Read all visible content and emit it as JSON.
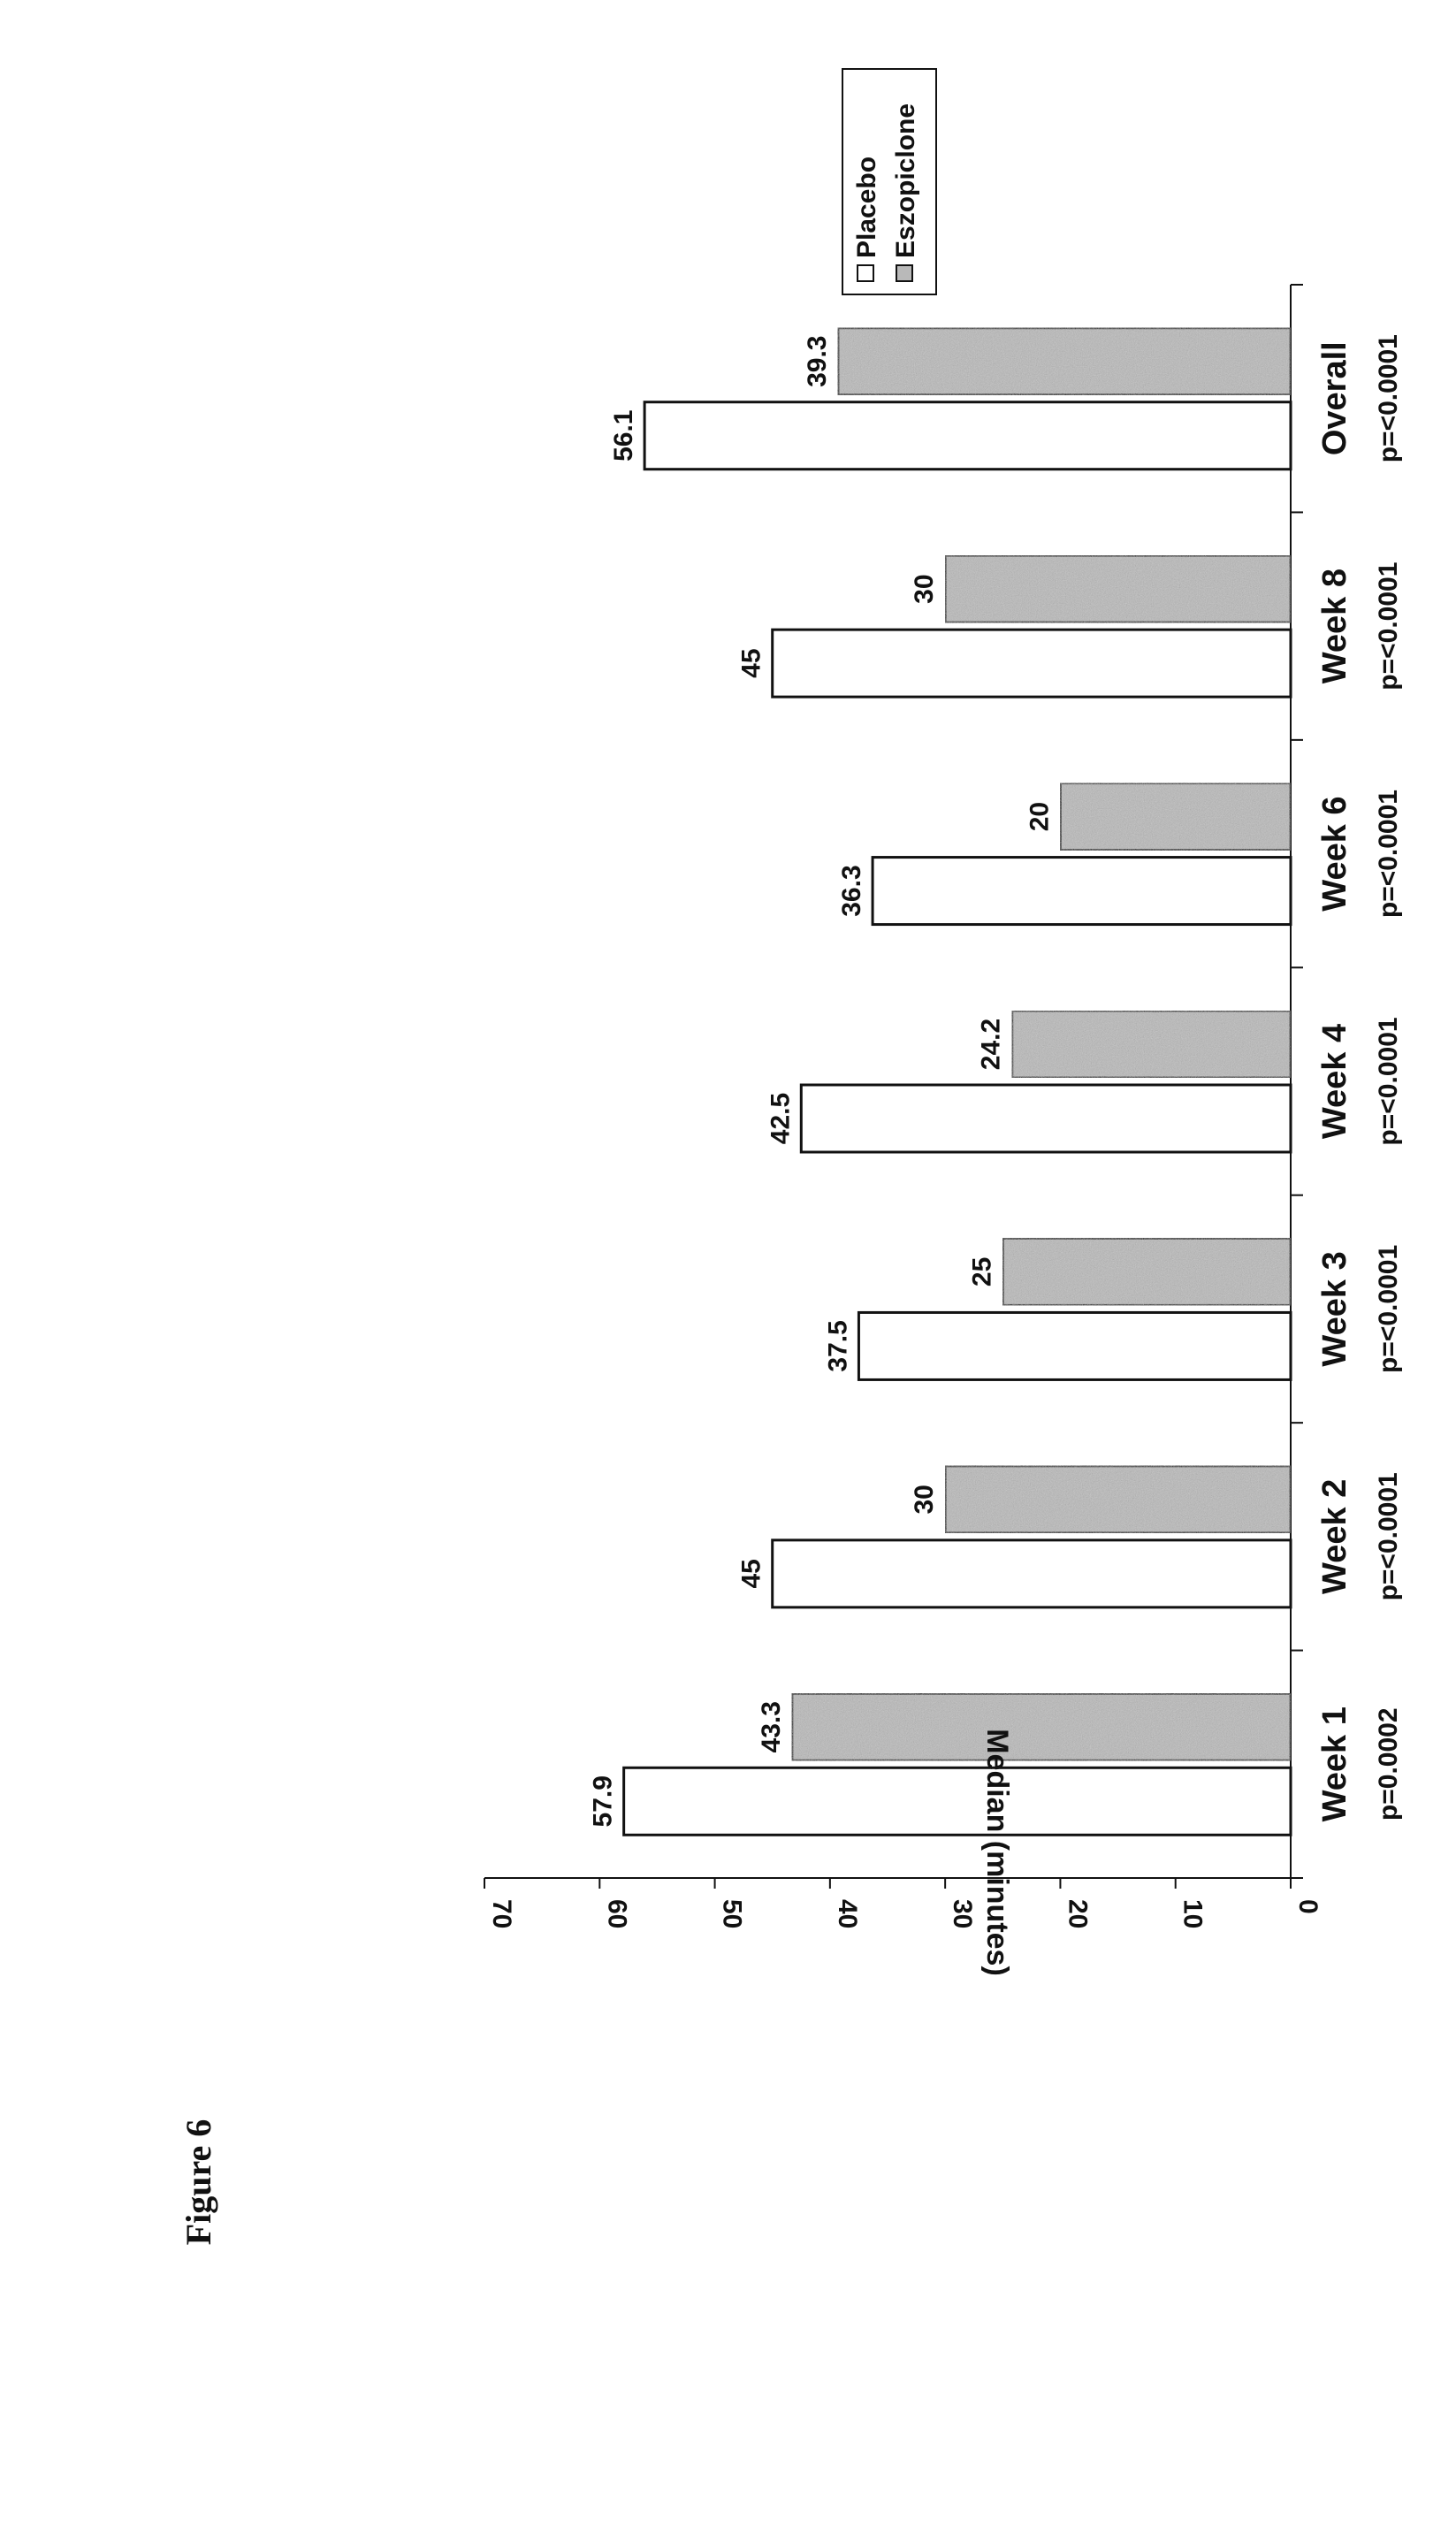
{
  "figure_label": "Figure 6",
  "colors": {
    "placebo_fill": "#ffffff",
    "eszopiclone_fill": "#b9b9b9",
    "stroke": "#111111"
  },
  "chart_data": {
    "type": "bar",
    "orientation": "rotated 90° (page is landscape-rotated)",
    "title": "",
    "xlabel": "",
    "ylabel": "Median (minutes)",
    "ylim": [
      0,
      70
    ],
    "yticks": [
      0,
      10,
      20,
      30,
      40,
      50,
      60,
      70
    ],
    "categories": [
      "Week 1",
      "Week 2",
      "Week 3",
      "Week 4",
      "Week 6",
      "Week 8",
      "Overall"
    ],
    "p_values": [
      "p=0.0002",
      "p=<0.0001",
      "p=<0.0001",
      "p=<0.0001",
      "p=<0.0001",
      "p=<0.0001",
      "p=<0.0001"
    ],
    "series": [
      {
        "name": "Placebo",
        "values": [
          57.9,
          45,
          37.5,
          42.5,
          36.3,
          45,
          56.1
        ]
      },
      {
        "name": "Eszopiclone",
        "values": [
          43.3,
          30,
          25,
          24.2,
          20,
          30,
          39.3
        ]
      }
    ],
    "data_labels": [
      [
        "57.9",
        "45",
        "37.5",
        "42.5",
        "36.3",
        "45",
        "56.1"
      ],
      [
        "43.3",
        "30",
        "25",
        "24.2",
        "20",
        "30",
        "39.3"
      ]
    ],
    "legend": {
      "position": "top-right",
      "entries": [
        "Placebo",
        "Eszopiclone"
      ]
    }
  }
}
